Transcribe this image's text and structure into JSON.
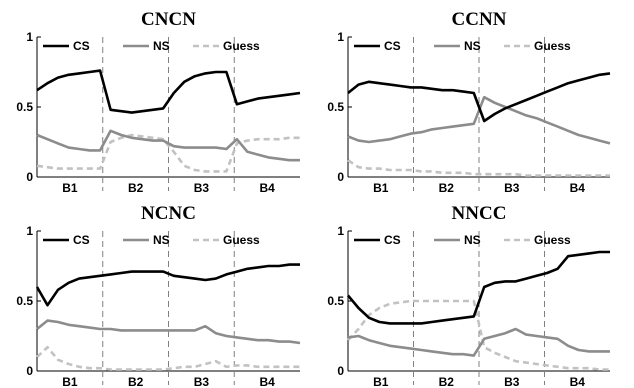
{
  "chart_data": [
    {
      "type": "line",
      "title": "CNCN",
      "x": [
        0,
        4,
        8,
        12,
        16,
        20,
        24,
        28,
        32,
        36,
        40,
        44,
        48,
        52,
        56,
        60,
        64,
        68,
        72,
        76,
        80,
        84,
        88,
        92,
        96,
        100
      ],
      "xlim": [
        0,
        100
      ],
      "ylim": [
        0,
        1
      ],
      "yticks": [
        0,
        0.5,
        1
      ],
      "yticklabels": [
        "0",
        "0.5",
        "1"
      ],
      "blocks": [
        "B1",
        "B2",
        "B3",
        "B4"
      ],
      "block_boundaries": [
        25,
        50,
        75
      ],
      "legend": [
        "CS",
        "NS",
        "Guess"
      ],
      "series": [
        {
          "name": "CS",
          "values": [
            0.62,
            0.67,
            0.71,
            0.73,
            0.74,
            0.75,
            0.76,
            0.48,
            0.47,
            0.46,
            0.47,
            0.48,
            0.49,
            0.6,
            0.68,
            0.72,
            0.74,
            0.75,
            0.75,
            0.52,
            0.54,
            0.56,
            0.57,
            0.58,
            0.59,
            0.6
          ]
        },
        {
          "name": "NS",
          "values": [
            0.3,
            0.27,
            0.24,
            0.21,
            0.2,
            0.19,
            0.19,
            0.33,
            0.3,
            0.28,
            0.27,
            0.26,
            0.26,
            0.22,
            0.21,
            0.21,
            0.21,
            0.21,
            0.2,
            0.27,
            0.18,
            0.16,
            0.14,
            0.13,
            0.12,
            0.12
          ]
        },
        {
          "name": "Guess",
          "values": [
            0.08,
            0.07,
            0.06,
            0.06,
            0.06,
            0.06,
            0.06,
            0.25,
            0.28,
            0.3,
            0.29,
            0.28,
            0.27,
            0.18,
            0.08,
            0.05,
            0.04,
            0.04,
            0.04,
            0.24,
            0.26,
            0.27,
            0.27,
            0.27,
            0.28,
            0.28
          ]
        }
      ]
    },
    {
      "type": "line",
      "title": "CCNN",
      "x": [
        0,
        4,
        8,
        12,
        16,
        20,
        24,
        28,
        32,
        36,
        40,
        44,
        48,
        52,
        56,
        60,
        64,
        68,
        72,
        76,
        80,
        84,
        88,
        92,
        96,
        100
      ],
      "xlim": [
        0,
        100
      ],
      "ylim": [
        0,
        1
      ],
      "yticks": [
        0,
        0.5,
        1
      ],
      "yticklabels": [
        "0",
        "0.5",
        "1"
      ],
      "blocks": [
        "B1",
        "B2",
        "B3",
        "B4"
      ],
      "block_boundaries": [
        25,
        50,
        75
      ],
      "legend": [
        "CS",
        "NS",
        "Guess"
      ],
      "series": [
        {
          "name": "CS",
          "values": [
            0.6,
            0.66,
            0.68,
            0.67,
            0.66,
            0.65,
            0.64,
            0.64,
            0.63,
            0.62,
            0.62,
            0.61,
            0.6,
            0.4,
            0.45,
            0.49,
            0.52,
            0.55,
            0.58,
            0.61,
            0.64,
            0.67,
            0.69,
            0.71,
            0.73,
            0.74
          ]
        },
        {
          "name": "NS",
          "values": [
            0.29,
            0.26,
            0.25,
            0.26,
            0.27,
            0.29,
            0.31,
            0.32,
            0.34,
            0.35,
            0.36,
            0.37,
            0.38,
            0.57,
            0.53,
            0.5,
            0.47,
            0.44,
            0.42,
            0.39,
            0.36,
            0.33,
            0.3,
            0.28,
            0.26,
            0.24
          ]
        },
        {
          "name": "Guess",
          "values": [
            0.12,
            0.07,
            0.06,
            0.06,
            0.05,
            0.05,
            0.05,
            0.04,
            0.04,
            0.03,
            0.03,
            0.03,
            0.02,
            0.02,
            0.02,
            0.02,
            0.02,
            0.01,
            0.01,
            0.01,
            0.01,
            0.01,
            0.01,
            0.01,
            0.01,
            0.01
          ]
        }
      ]
    },
    {
      "type": "line",
      "title": "NCNC",
      "x": [
        0,
        4,
        8,
        12,
        16,
        20,
        24,
        28,
        32,
        36,
        40,
        44,
        48,
        52,
        56,
        60,
        64,
        68,
        72,
        76,
        80,
        84,
        88,
        92,
        96,
        100
      ],
      "xlim": [
        0,
        100
      ],
      "ylim": [
        0,
        1
      ],
      "yticks": [
        0,
        0.5,
        1
      ],
      "yticklabels": [
        "0",
        "0.5",
        "1"
      ],
      "blocks": [
        "B1",
        "B2",
        "B3",
        "B4"
      ],
      "block_boundaries": [
        25,
        50,
        75
      ],
      "legend": [
        "CS",
        "NS",
        "Guess"
      ],
      "series": [
        {
          "name": "CS",
          "values": [
            0.6,
            0.47,
            0.58,
            0.63,
            0.66,
            0.67,
            0.68,
            0.69,
            0.7,
            0.71,
            0.71,
            0.71,
            0.71,
            0.68,
            0.67,
            0.66,
            0.65,
            0.66,
            0.69,
            0.71,
            0.73,
            0.74,
            0.75,
            0.75,
            0.76,
            0.76
          ]
        },
        {
          "name": "NS",
          "values": [
            0.3,
            0.36,
            0.35,
            0.33,
            0.32,
            0.31,
            0.3,
            0.3,
            0.29,
            0.29,
            0.29,
            0.29,
            0.29,
            0.29,
            0.29,
            0.29,
            0.32,
            0.27,
            0.25,
            0.24,
            0.23,
            0.22,
            0.22,
            0.21,
            0.21,
            0.2
          ]
        },
        {
          "name": "Guess",
          "values": [
            0.1,
            0.17,
            0.08,
            0.05,
            0.03,
            0.02,
            0.02,
            0.01,
            0.01,
            0.01,
            0.01,
            0.01,
            0.01,
            0.02,
            0.03,
            0.03,
            0.05,
            0.07,
            0.03,
            0.04,
            0.04,
            0.03,
            0.03,
            0.03,
            0.03,
            0.03
          ]
        }
      ]
    },
    {
      "type": "line",
      "title": "NNCC",
      "x": [
        0,
        4,
        8,
        12,
        16,
        20,
        24,
        28,
        32,
        36,
        40,
        44,
        48,
        52,
        56,
        60,
        64,
        68,
        72,
        76,
        80,
        84,
        88,
        92,
        96,
        100
      ],
      "xlim": [
        0,
        100
      ],
      "ylim": [
        0,
        1
      ],
      "yticks": [
        0,
        0.5,
        1
      ],
      "yticklabels": [
        "0",
        "0.5",
        "1"
      ],
      "blocks": [
        "B1",
        "B2",
        "B3",
        "B4"
      ],
      "block_boundaries": [
        25,
        50,
        75
      ],
      "legend": [
        "CS",
        "NS",
        "Guess"
      ],
      "series": [
        {
          "name": "CS",
          "values": [
            0.54,
            0.45,
            0.38,
            0.35,
            0.34,
            0.34,
            0.34,
            0.34,
            0.35,
            0.36,
            0.37,
            0.38,
            0.39,
            0.6,
            0.63,
            0.64,
            0.64,
            0.66,
            0.68,
            0.7,
            0.73,
            0.82,
            0.83,
            0.84,
            0.85,
            0.85
          ]
        },
        {
          "name": "NS",
          "values": [
            0.24,
            0.25,
            0.22,
            0.2,
            0.18,
            0.17,
            0.16,
            0.15,
            0.14,
            0.13,
            0.12,
            0.12,
            0.11,
            0.23,
            0.25,
            0.27,
            0.3,
            0.26,
            0.25,
            0.24,
            0.23,
            0.18,
            0.15,
            0.14,
            0.14,
            0.14
          ]
        },
        {
          "name": "Guess",
          "values": [
            0.22,
            0.3,
            0.4,
            0.45,
            0.48,
            0.49,
            0.5,
            0.5,
            0.5,
            0.5,
            0.5,
            0.5,
            0.5,
            0.17,
            0.13,
            0.1,
            0.07,
            0.06,
            0.05,
            0.04,
            0.03,
            0.02,
            0.02,
            0.02,
            0.01,
            0.01
          ]
        }
      ]
    }
  ],
  "style": {
    "colors": {
      "CS": "#000000",
      "NS": "#8c8c8c",
      "Guess": "#c2c2c2",
      "axis": "#000000",
      "boundary": "#808080"
    },
    "dashes": {
      "CS": "",
      "NS": "",
      "Guess": "6,4"
    }
  }
}
